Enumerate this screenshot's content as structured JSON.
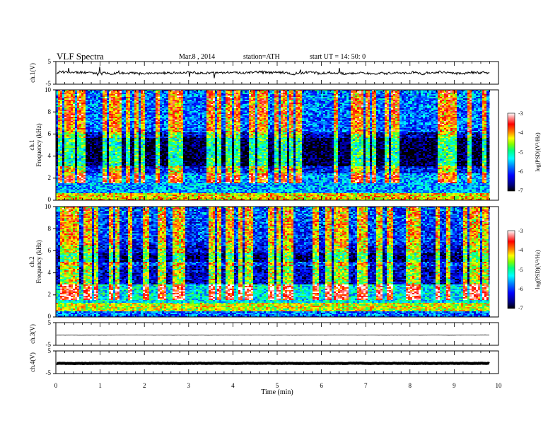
{
  "header": {
    "title": "VLF  Spectra",
    "date": "Mar.8  , 2014",
    "station": "station=ATH",
    "start": "start  UT  =    14: 50: 0"
  },
  "colors": {
    "spectrogram_scale": [
      "#000000",
      "#00007f",
      "#0000ff",
      "#0080ff",
      "#00ffff",
      "#00ff80",
      "#80ff00",
      "#ffff00",
      "#ff8000",
      "#ff0000",
      "#ffffff"
    ]
  },
  "chart_data": [
    {
      "type": "line",
      "panel": "ch1-waveform",
      "ylabel": "ch.1(V)",
      "yticks": [
        "5",
        "-5"
      ],
      "ylim": [
        -5,
        5
      ],
      "xlim": [
        0,
        10
      ],
      "data_end_min": 9.8,
      "approx_level": 0,
      "grid": false
    },
    {
      "type": "heatmap",
      "panel": "ch1-spectrogram",
      "ylabel_top": "ch.1",
      "ylabel": "Frequency  (kHz)",
      "yticks": [
        "0",
        "2",
        "4",
        "6",
        "8",
        "10"
      ],
      "ylim": [
        0,
        10
      ],
      "xlim": [
        0,
        10
      ],
      "data_end_min": 9.8,
      "colorbar": {
        "label": "log(PSD)(V²/Hz)",
        "ticks": [
          "-3",
          "-4",
          "-5",
          "-6",
          "-7"
        ],
        "range": [
          -7,
          -3
        ]
      },
      "bands": [
        {
          "from_khz": 0.0,
          "to_khz": 0.7,
          "level": -4.2
        },
        {
          "from_khz": 0.7,
          "to_khz": 2.4,
          "level": -5.6
        },
        {
          "from_khz": 2.4,
          "to_khz": 3.1,
          "level": -6.2
        },
        {
          "from_khz": 3.1,
          "to_khz": 5.6,
          "level": -6.9
        },
        {
          "from_khz": 5.6,
          "to_khz": 6.2,
          "level": -6.4
        },
        {
          "from_khz": 6.2,
          "to_khz": 10.0,
          "level": -5.9
        }
      ]
    },
    {
      "type": "heatmap",
      "panel": "ch2-spectrogram",
      "ylabel_top": "ch.2",
      "ylabel": "Frequency  (kHz)",
      "yticks": [
        "0",
        "2",
        "4",
        "6",
        "8",
        "10"
      ],
      "ylim": [
        0,
        10
      ],
      "xlim": [
        0,
        10
      ],
      "data_end_min": 9.8,
      "colorbar": {
        "label": "log(PSD)(V²/Hz)",
        "ticks": [
          "-3",
          "-4",
          "-5",
          "-6",
          "-7"
        ],
        "range": [
          -7,
          -3
        ]
      },
      "bands": [
        {
          "from_khz": 0.0,
          "to_khz": 0.5,
          "level": -5.8
        },
        {
          "from_khz": 0.5,
          "to_khz": 1.3,
          "level": -4.4
        },
        {
          "from_khz": 1.3,
          "to_khz": 3.0,
          "level": -5.3
        },
        {
          "from_khz": 3.0,
          "to_khz": 4.6,
          "level": -6.4
        },
        {
          "from_khz": 4.6,
          "to_khz": 5.0,
          "level": -6.0
        },
        {
          "from_khz": 5.0,
          "to_khz": 5.8,
          "level": -6.7
        },
        {
          "from_khz": 5.8,
          "to_khz": 6.5,
          "level": -6.3
        },
        {
          "from_khz": 6.5,
          "to_khz": 10.0,
          "level": -6.1
        }
      ]
    },
    {
      "type": "line",
      "panel": "ch3-waveform",
      "ylabel": "ch.3(V)",
      "yticks": [
        "5",
        "-5"
      ],
      "ylim": [
        -5,
        5
      ],
      "xlim": [
        0,
        10
      ],
      "data_end_min": 9.8,
      "approx_level": -0.5,
      "grid": false
    },
    {
      "type": "line",
      "panel": "ch4-waveform",
      "ylabel": "ch.4(V)",
      "yticks": [
        "5",
        "-5"
      ],
      "ylim": [
        -5,
        5
      ],
      "xlim": [
        0,
        10
      ],
      "data_end_min": 9.8,
      "approx_level": -0.5,
      "grid": false
    }
  ],
  "xaxis": {
    "label": "Time  (min)",
    "ticks": [
      "0",
      "1",
      "2",
      "3",
      "4",
      "5",
      "6",
      "7",
      "8",
      "9",
      "10"
    ],
    "range": [
      0,
      10
    ]
  }
}
